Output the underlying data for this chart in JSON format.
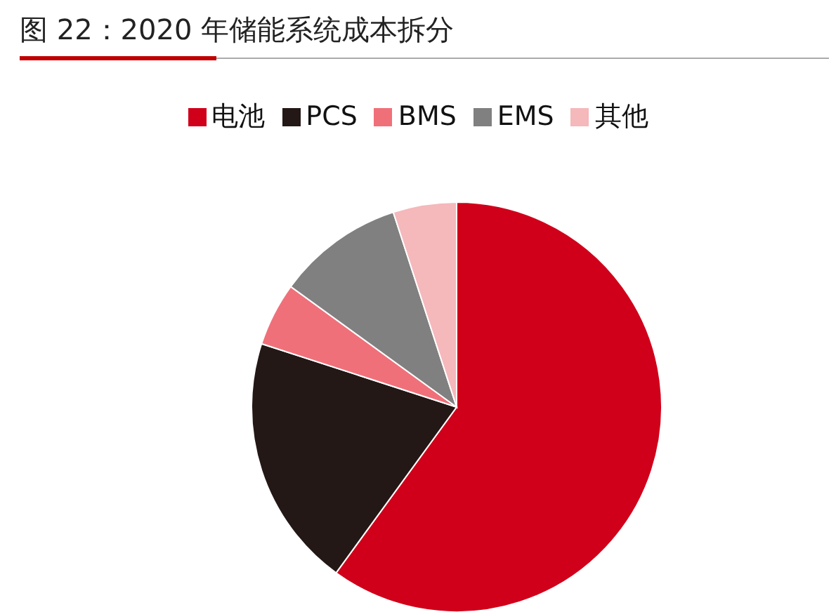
{
  "chart_data": {
    "type": "pie",
    "title": "图 22：2020 年储能系统成本拆分",
    "categories": [
      "电池",
      "PCS",
      "BMS",
      "EMS",
      "其他"
    ],
    "values": [
      60,
      20,
      5,
      10,
      5
    ],
    "colors": [
      "#d0001a",
      "#231815",
      "#f0707a",
      "#808080",
      "#f5b8bb"
    ],
    "legend": "top"
  }
}
